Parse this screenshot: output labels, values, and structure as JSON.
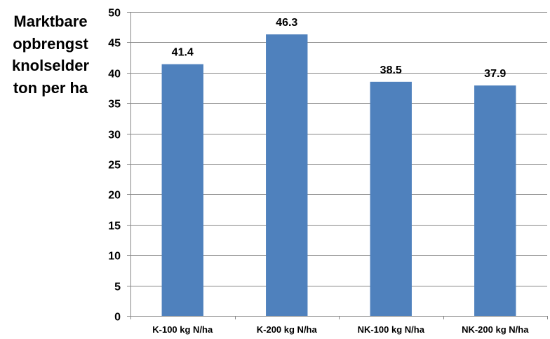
{
  "chart_data": {
    "type": "bar",
    "title": "",
    "xlabel": "",
    "ylabel_lines": [
      "Marktbare",
      "opbrengst",
      "knolselder",
      "ton per ha"
    ],
    "categories": [
      "K-100 kg N/ha",
      "K-200 kg N/ha",
      "NK-100 kg N/ha",
      "NK-200 kg N/ha"
    ],
    "values": [
      41.4,
      46.3,
      38.5,
      37.9
    ],
    "data_labels": [
      "41.4",
      "46.3",
      "38.5",
      "37.9"
    ],
    "ylim": [
      0,
      50
    ],
    "yticks": [
      "0",
      "5",
      "10",
      "15",
      "20",
      "25",
      "30",
      "35",
      "40",
      "45",
      "50"
    ],
    "grid": true,
    "legend": "none",
    "bar_color": "#4F81BD",
    "grid_color": "#868686",
    "axis_color": "#868686"
  }
}
